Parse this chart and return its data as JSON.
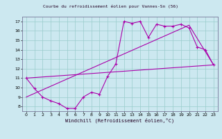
{
  "title": "Courbe du refroidissement éolien pour Vannes-Sn (56)",
  "xlabel": "Windchill (Refroidissement éolien,°C)",
  "bg_color": "#cce8f0",
  "line_color": "#aa00aa",
  "grid_color": "#99cccc",
  "xlim": [
    -0.5,
    23.5
  ],
  "ylim": [
    7.5,
    17.5
  ],
  "yticks": [
    8,
    9,
    10,
    11,
    12,
    13,
    14,
    15,
    16,
    17
  ],
  "xticks": [
    0,
    1,
    2,
    3,
    4,
    5,
    6,
    7,
    8,
    9,
    10,
    11,
    12,
    13,
    14,
    15,
    16,
    17,
    18,
    19,
    20,
    21,
    22,
    23
  ],
  "line1_x": [
    0,
    1,
    2,
    3,
    4,
    5,
    6,
    7,
    8,
    9,
    10,
    11,
    12,
    13,
    14,
    15,
    16,
    17,
    18,
    19,
    20,
    21,
    22,
    23
  ],
  "line1_y": [
    11.0,
    9.9,
    9.0,
    8.6,
    8.3,
    7.8,
    7.8,
    9.0,
    9.5,
    9.3,
    11.2,
    12.5,
    17.0,
    16.8,
    17.0,
    15.3,
    16.7,
    16.5,
    16.5,
    16.7,
    16.3,
    14.3,
    14.0,
    12.4
  ],
  "line2_x": [
    0,
    23
  ],
  "line2_y": [
    11.0,
    12.4
  ],
  "line3_x": [
    0,
    20,
    23
  ],
  "line3_y": [
    9.0,
    16.6,
    12.4
  ]
}
